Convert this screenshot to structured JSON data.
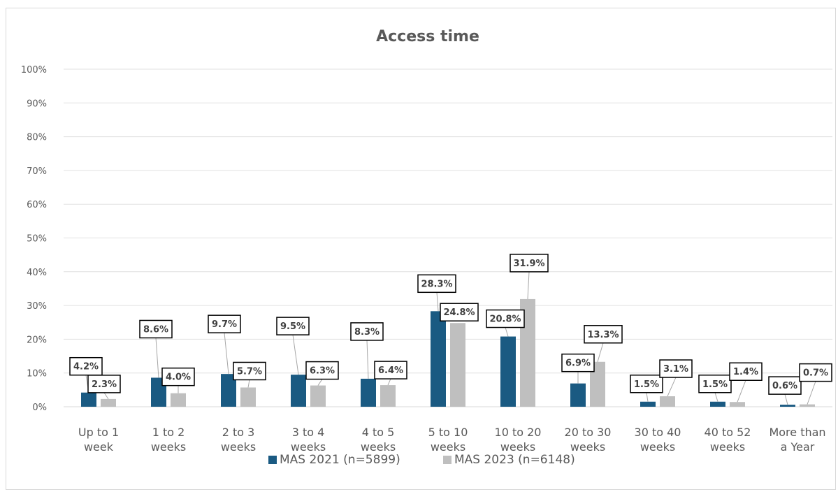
{
  "chart_data": {
    "type": "bar",
    "title": "Access time",
    "categories": [
      [
        "Up to 1",
        "week"
      ],
      [
        "1 to 2",
        "weeks"
      ],
      [
        "2 to 3",
        "weeks"
      ],
      [
        "3 to 4",
        "weeks"
      ],
      [
        "4 to 5",
        "weeks"
      ],
      [
        "5 to 10",
        "weeks"
      ],
      [
        "10 to 20",
        "weeks"
      ],
      [
        "20 to 30",
        "weeks"
      ],
      [
        "30 to 40",
        "weeks"
      ],
      [
        "40 to 52",
        "weeks"
      ],
      [
        "More than",
        "a Year"
      ]
    ],
    "series": [
      {
        "name": "MAS 2021 (n=5899)",
        "color": "#1a5a82",
        "values": [
          4.2,
          8.6,
          9.7,
          9.5,
          8.3,
          28.3,
          20.8,
          6.9,
          1.5,
          1.5,
          0.6
        ],
        "labels": [
          "4.2%",
          "8.6%",
          "9.7%",
          "9.5%",
          "8.3%",
          "28.3%",
          "20.8%",
          "6.9%",
          "1.5%",
          "1.5%",
          "0.6%"
        ]
      },
      {
        "name": "MAS 2023 (n=6148)",
        "color": "#bfbfbf",
        "values": [
          2.3,
          4.0,
          5.7,
          6.3,
          6.4,
          24.8,
          31.9,
          13.3,
          3.1,
          1.4,
          0.7
        ],
        "labels": [
          "2.3%",
          "4.0%",
          "5.7%",
          "6.3%",
          "6.4%",
          "24.8%",
          "31.9%",
          "13.3%",
          "3.1%",
          "1.4%",
          "0.7%"
        ]
      }
    ],
    "yticks": [
      "0%",
      "10%",
      "20%",
      "30%",
      "40%",
      "50%",
      "60%",
      "70%",
      "80%",
      "90%",
      "100%"
    ],
    "ylim": [
      0,
      100
    ],
    "grid": true,
    "legend": "bottom"
  }
}
